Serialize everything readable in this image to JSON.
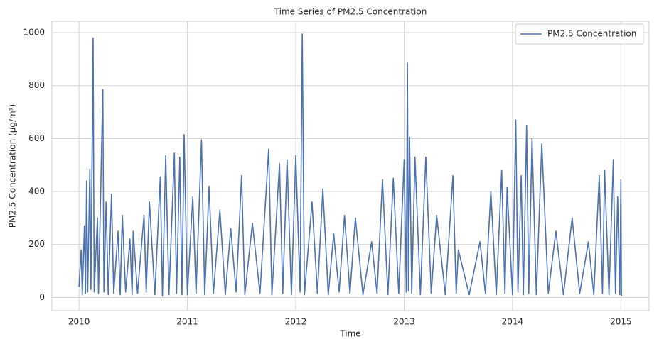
{
  "chart_data": {
    "type": "line",
    "title": "Time Series of PM2.5 Concentration",
    "xlabel": "Time",
    "ylabel": "PM2.5 Concentration (μg/m³)",
    "x": [
      2010.0,
      2010.02,
      2010.03,
      2010.05,
      2010.06,
      2010.07,
      2010.08,
      2010.1,
      2010.11,
      2010.13,
      2010.14,
      2010.17,
      2010.18,
      2010.22,
      2010.23,
      2010.25,
      2010.27,
      2010.3,
      2010.32,
      2010.36,
      2010.38,
      2010.4,
      2010.43,
      2010.47,
      2010.49,
      2010.5,
      2010.54,
      2010.6,
      2010.62,
      2010.65,
      2010.7,
      2010.75,
      2010.77,
      2010.8,
      2010.83,
      2010.88,
      2010.9,
      2010.93,
      2010.95,
      2010.97,
      2011.0,
      2011.05,
      2011.08,
      2011.13,
      2011.16,
      2011.2,
      2011.24,
      2011.3,
      2011.35,
      2011.4,
      2011.45,
      2011.5,
      2011.53,
      2011.6,
      2011.67,
      2011.75,
      2011.78,
      2011.85,
      2011.88,
      2011.92,
      2011.96,
      2012.0,
      2012.04,
      2012.06,
      2012.08,
      2012.15,
      2012.2,
      2012.25,
      2012.3,
      2012.35,
      2012.4,
      2012.45,
      2012.5,
      2012.55,
      2012.62,
      2012.7,
      2012.75,
      2012.8,
      2012.85,
      2012.9,
      2012.95,
      2013.0,
      2013.02,
      2013.03,
      2013.04,
      2013.05,
      2013.07,
      2013.1,
      2013.15,
      2013.2,
      2013.25,
      2013.3,
      2013.38,
      2013.45,
      2013.48,
      2013.5,
      2013.6,
      2013.7,
      2013.75,
      2013.8,
      2013.85,
      2013.9,
      2013.93,
      2013.95,
      2014.0,
      2014.03,
      2014.05,
      2014.08,
      2014.1,
      2014.13,
      2014.15,
      2014.18,
      2014.22,
      2014.27,
      2014.33,
      2014.4,
      2014.47,
      2014.55,
      2014.62,
      2014.7,
      2014.75,
      2014.8,
      2014.83,
      2014.85,
      2014.89,
      2014.93,
      2014.95,
      2014.97,
      2014.99,
      2015.0,
      2015.005
    ],
    "series": [
      {
        "name": "PM2.5 Concentration",
        "color": "#4c72b0",
        "values": [
          40,
          180,
          10,
          270,
          15,
          440,
          20,
          485,
          30,
          980,
          20,
          300,
          15,
          785,
          20,
          360,
          10,
          390,
          15,
          250,
          10,
          310,
          20,
          220,
          10,
          250,
          15,
          310,
          20,
          360,
          10,
          455,
          5,
          535,
          10,
          545,
          15,
          530,
          10,
          615,
          10,
          380,
          15,
          595,
          10,
          420,
          15,
          330,
          10,
          260,
          20,
          460,
          10,
          280,
          15,
          560,
          10,
          505,
          15,
          520,
          10,
          535,
          20,
          995,
          10,
          360,
          15,
          410,
          10,
          240,
          20,
          310,
          15,
          300,
          10,
          210,
          15,
          445,
          10,
          450,
          15,
          520,
          20,
          885,
          25,
          605,
          15,
          530,
          10,
          530,
          15,
          310,
          10,
          460,
          15,
          180,
          10,
          210,
          15,
          400,
          10,
          480,
          15,
          415,
          10,
          670,
          20,
          460,
          10,
          650,
          15,
          600,
          10,
          580,
          15,
          250,
          10,
          300,
          15,
          210,
          10,
          460,
          15,
          480,
          10,
          520,
          15,
          380,
          10,
          445,
          5
        ]
      }
    ],
    "xlim": [
      2009.75,
      2015.26
    ],
    "ylim": [
      -50,
      1043
    ],
    "xticks": [
      2010,
      2011,
      2012,
      2013,
      2014,
      2015
    ],
    "yticks": [
      0,
      200,
      400,
      600,
      800,
      1000
    ],
    "grid": true,
    "legend": "upper right"
  }
}
